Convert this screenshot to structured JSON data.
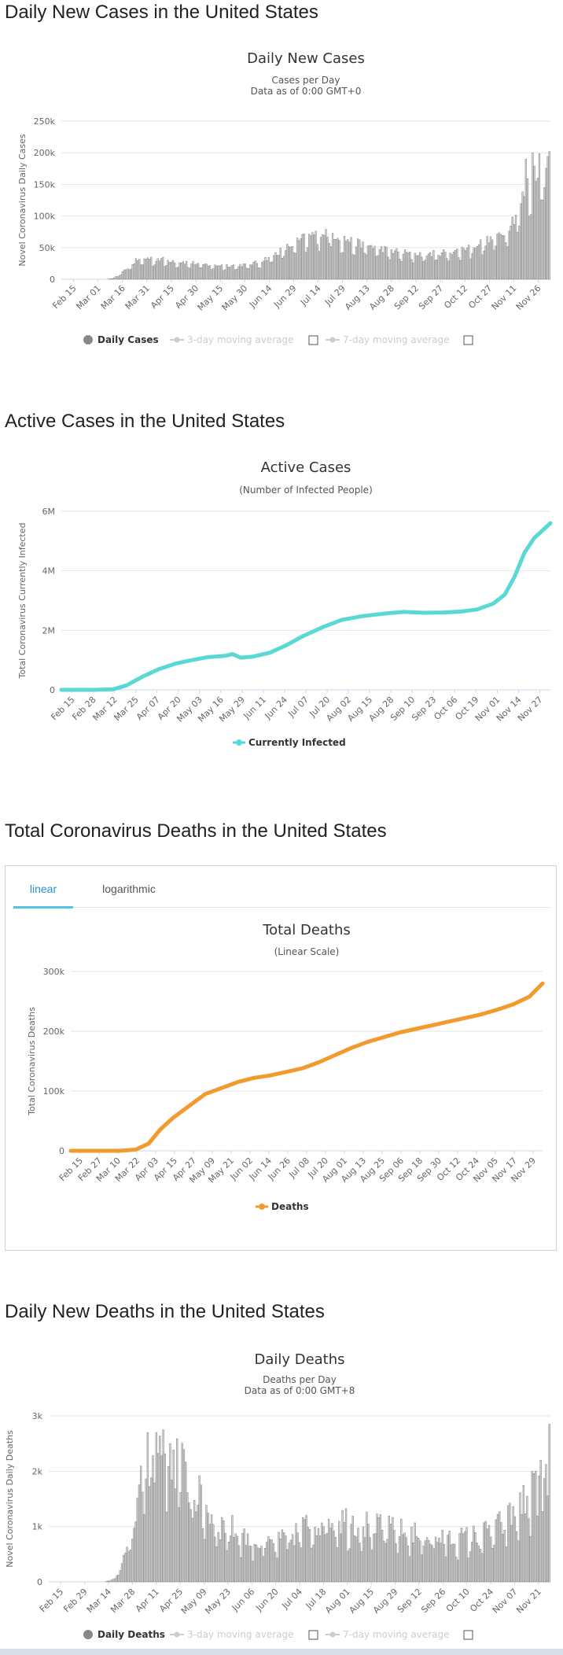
{
  "sections": {
    "daily_cases": "Daily New Cases in the United States",
    "active_cases": "Active Cases in the United States",
    "total_deaths": "Total Coronavirus Deaths in the United States",
    "daily_deaths": "Daily New Deaths in the United States"
  },
  "tabs": {
    "linear": "linear",
    "logarithmic": "logarithmic"
  },
  "colors": {
    "bar": "#d0d0d0",
    "bar_stroke": "#707070",
    "active": "#5ad8d6",
    "deaths": "#f29a2e",
    "tab_accent": "#4fc3e6"
  },
  "chart_data": [
    {
      "id": "daily-cases",
      "type": "bar",
      "title": "Daily New Cases",
      "subtitle": [
        "Cases per Day",
        "Data as of 0:00 GMT+0"
      ],
      "ylabel": "Novel Coronavirus Daily Cases",
      "ylim": [
        0,
        250000
      ],
      "yticks": [
        0,
        50000,
        100000,
        150000,
        200000,
        250000
      ],
      "ytick_labels": [
        "0",
        "50k",
        "100k",
        "150k",
        "200k",
        "250k"
      ],
      "xtick_labels": [
        "Feb 15",
        "Mar 01",
        "Mar 16",
        "Mar 31",
        "Apr 15",
        "Apr 30",
        "May 15",
        "May 30",
        "Jun 14",
        "Jun 29",
        "Jul 14",
        "Jul 29",
        "Aug 13",
        "Aug 28",
        "Sep 12",
        "Sep 27",
        "Oct 12",
        "Oct 27",
        "Nov 11",
        "Nov 26"
      ],
      "start": "Feb 15",
      "days": 291,
      "knots": [
        [
          0,
          0
        ],
        [
          26,
          0
        ],
        [
          30,
          1000
        ],
        [
          35,
          8000
        ],
        [
          40,
          20000
        ],
        [
          45,
          30000
        ],
        [
          52,
          32000
        ],
        [
          60,
          30000
        ],
        [
          70,
          27000
        ],
        [
          85,
          22000
        ],
        [
          100,
          21000
        ],
        [
          110,
          22000
        ],
        [
          117,
          26000
        ],
        [
          125,
          36000
        ],
        [
          135,
          50000
        ],
        [
          145,
          64000
        ],
        [
          152,
          70000
        ],
        [
          158,
          72000
        ],
        [
          165,
          65000
        ],
        [
          175,
          55000
        ],
        [
          185,
          50000
        ],
        [
          195,
          44000
        ],
        [
          205,
          40000
        ],
        [
          215,
          38000
        ],
        [
          225,
          40000
        ],
        [
          235,
          44000
        ],
        [
          245,
          52000
        ],
        [
          255,
          60000
        ],
        [
          262,
          72000
        ],
        [
          268,
          90000
        ],
        [
          272,
          110000
        ],
        [
          276,
          135000
        ],
        [
          280,
          160000
        ],
        [
          284,
          175000
        ],
        [
          288,
          170000
        ],
        [
          290,
          195000
        ]
      ],
      "noise": 0.13,
      "spikes": [
        [
          276,
          190000
        ],
        [
          280,
          200000
        ],
        [
          283,
          160000
        ],
        [
          287,
          145000
        ],
        [
          290,
          202000
        ]
      ],
      "legend": [
        "Daily Cases",
        "3-day moving average",
        "7-day moving average"
      ]
    },
    {
      "id": "active-cases",
      "type": "line",
      "title": "Active Cases",
      "subtitle": [
        "(Number of Infected People)"
      ],
      "ylabel": "Total Coronavirus Currently Infected",
      "ylim": [
        0,
        6000000
      ],
      "yticks": [
        0,
        2000000,
        4000000,
        6000000
      ],
      "ytick_labels": [
        "0",
        "2M",
        "4M",
        "6M"
      ],
      "xtick_labels": [
        "Feb 15",
        "Feb 28",
        "Mar 12",
        "Mar 25",
        "Apr 07",
        "Apr 20",
        "May 03",
        "May 16",
        "May 29",
        "Jun 11",
        "Jun 24",
        "Jul 07",
        "Jul 20",
        "Aug 02",
        "Aug 15",
        "Aug 28",
        "Sep 10",
        "Sep 23",
        "Oct 06",
        "Oct 19",
        "Nov 01",
        "Nov 14",
        "Nov 27"
      ],
      "start": "Feb 15",
      "days": 291,
      "points": [
        [
          0,
          0
        ],
        [
          20,
          0
        ],
        [
          32,
          20000
        ],
        [
          40,
          150000
        ],
        [
          50,
          450000
        ],
        [
          60,
          700000
        ],
        [
          70,
          880000
        ],
        [
          80,
          1000000
        ],
        [
          90,
          1100000
        ],
        [
          100,
          1140000
        ],
        [
          105,
          1200000
        ],
        [
          110,
          1080000
        ],
        [
          118,
          1120000
        ],
        [
          128,
          1250000
        ],
        [
          138,
          1500000
        ],
        [
          148,
          1800000
        ],
        [
          160,
          2100000
        ],
        [
          172,
          2350000
        ],
        [
          185,
          2480000
        ],
        [
          198,
          2560000
        ],
        [
          210,
          2620000
        ],
        [
          222,
          2590000
        ],
        [
          235,
          2600000
        ],
        [
          245,
          2630000
        ],
        [
          255,
          2700000
        ],
        [
          265,
          2900000
        ],
        [
          272,
          3200000
        ],
        [
          278,
          3800000
        ],
        [
          284,
          4600000
        ],
        [
          290,
          5100000
        ],
        [
          300,
          5600000
        ]
      ],
      "legend": [
        "Currently Infected"
      ]
    },
    {
      "id": "total-deaths",
      "type": "line",
      "title": "Total Deaths",
      "subtitle": [
        "(Linear Scale)"
      ],
      "ylabel": "Total Coronavirus Deaths",
      "ylim": [
        0,
        300000
      ],
      "yticks": [
        0,
        100000,
        200000,
        300000
      ],
      "ytick_labels": [
        "0",
        "100k",
        "200k",
        "300k"
      ],
      "xtick_labels": [
        "Feb 15",
        "Feb 27",
        "Mar 10",
        "Mar 22",
        "Apr 03",
        "Apr 15",
        "Apr 27",
        "May 09",
        "May 21",
        "Jun 02",
        "Jun 14",
        "Jun 26",
        "Jul 08",
        "Jul 20",
        "Aug 01",
        "Aug 13",
        "Aug 25",
        "Sep 06",
        "Sep 18",
        "Sep 30",
        "Oct 12",
        "Oct 24",
        "Nov 05",
        "Nov 17",
        "Nov 29"
      ],
      "start": "Feb 15",
      "days": 291,
      "points": [
        [
          0,
          0
        ],
        [
          30,
          0
        ],
        [
          40,
          2000
        ],
        [
          48,
          12000
        ],
        [
          55,
          35000
        ],
        [
          63,
          55000
        ],
        [
          73,
          75000
        ],
        [
          83,
          95000
        ],
        [
          93,
          105000
        ],
        [
          103,
          115000
        ],
        [
          113,
          122000
        ],
        [
          123,
          126000
        ],
        [
          133,
          132000
        ],
        [
          143,
          138000
        ],
        [
          153,
          148000
        ],
        [
          163,
          160000
        ],
        [
          173,
          172000
        ],
        [
          183,
          182000
        ],
        [
          193,
          190000
        ],
        [
          203,
          198000
        ],
        [
          213,
          204000
        ],
        [
          223,
          210000
        ],
        [
          233,
          216000
        ],
        [
          243,
          222000
        ],
        [
          253,
          228000
        ],
        [
          263,
          236000
        ],
        [
          273,
          245000
        ],
        [
          283,
          258000
        ],
        [
          291,
          280000
        ]
      ],
      "legend": [
        "Deaths"
      ]
    },
    {
      "id": "daily-deaths",
      "type": "bar",
      "title": "Daily Deaths",
      "subtitle": [
        "Deaths per Day",
        "Data as of 0:00 GMT+8"
      ],
      "ylabel": "Novel Coronavirus Daily Deaths",
      "ylim": [
        0,
        3000
      ],
      "yticks": [
        0,
        1000,
        2000,
        3000
      ],
      "ytick_labels": [
        "0",
        "1k",
        "2k",
        "3k"
      ],
      "xtick_labels": [
        "Feb 15",
        "Feb 29",
        "Mar 14",
        "Mar 28",
        "Apr 11",
        "Apr 25",
        "May 09",
        "May 23",
        "Jun 06",
        "Jun 20",
        "Jul 04",
        "Jul 18",
        "Aug 01",
        "Aug 15",
        "Aug 29",
        "Sep 12",
        "Sep 26",
        "Oct 10",
        "Oct 24",
        "Nov 07",
        "Nov 21"
      ],
      "start": "Feb 15",
      "days": 291,
      "knots": [
        [
          0,
          0
        ],
        [
          32,
          0
        ],
        [
          38,
          50
        ],
        [
          45,
          500
        ],
        [
          50,
          1300
        ],
        [
          55,
          1900
        ],
        [
          58,
          2200
        ],
        [
          63,
          2400
        ],
        [
          70,
          2300
        ],
        [
          78,
          1900
        ],
        [
          88,
          1400
        ],
        [
          98,
          1000
        ],
        [
          108,
          900
        ],
        [
          118,
          700
        ],
        [
          128,
          650
        ],
        [
          138,
          750
        ],
        [
          148,
          950
        ],
        [
          158,
          1100
        ],
        [
          168,
          1100
        ],
        [
          178,
          1050
        ],
        [
          188,
          950
        ],
        [
          198,
          900
        ],
        [
          208,
          850
        ],
        [
          218,
          800
        ],
        [
          228,
          750
        ],
        [
          238,
          750
        ],
        [
          248,
          800
        ],
        [
          258,
          900
        ],
        [
          268,
          1150
        ],
        [
          278,
          1450
        ],
        [
          288,
          1700
        ],
        [
          290,
          1800
        ]
      ],
      "noise": 0.28,
      "spikes": [
        [
          57,
          2700
        ],
        [
          62,
          2700
        ],
        [
          66,
          2750
        ],
        [
          70,
          2500
        ],
        [
          280,
          2000
        ],
        [
          285,
          2200
        ],
        [
          290,
          2850
        ]
      ],
      "legend": [
        "Daily Deaths",
        "3-day moving average",
        "7-day moving average"
      ]
    }
  ]
}
